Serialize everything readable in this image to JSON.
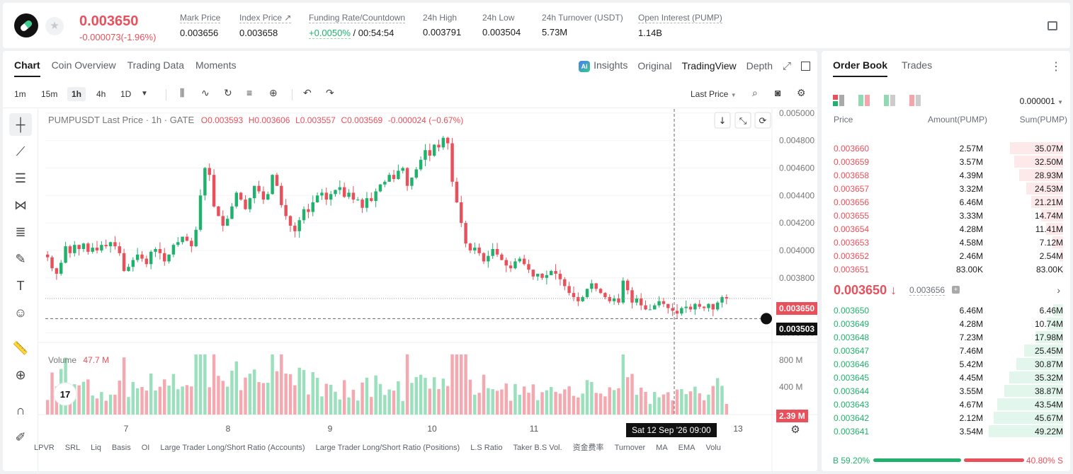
{
  "header": {
    "last_price": "0.003650",
    "change": "-0.000073(-1.96%)",
    "stats": [
      {
        "label": "Mark Price",
        "value": "0.003656"
      },
      {
        "label": "Index Price ↗",
        "value": "0.003658"
      },
      {
        "label": "Funding Rate/Countdown",
        "value_green": "+0.0050%",
        "value": " / 00:54:54"
      },
      {
        "label": "24h High",
        "value": "0.003791"
      },
      {
        "label": "24h Low",
        "value": "0.003504"
      },
      {
        "label": "24h Turnover (USDT)",
        "value": "5.73M"
      },
      {
        "label": "Open Interest (PUMP)",
        "value": "1.14B"
      }
    ]
  },
  "chart_panel": {
    "tabs": [
      "Chart",
      "Coin Overview",
      "Trading Data",
      "Moments"
    ],
    "view_tabs": [
      "Insights",
      "Original",
      "TradingView",
      "Depth"
    ],
    "intervals": [
      "1m",
      "15m",
      "1h",
      "4h",
      "1D"
    ],
    "price_type": "Last Price",
    "legend": {
      "symbol": "PUMPUSDT Last Price · 1h · GATE",
      "o": "O0.003593",
      "h": "H0.003606",
      "l": "L0.003557",
      "c": "C0.003569",
      "chg": "-0.000024 (−0.67%)"
    },
    "volume_label": "Volume",
    "volume_value": "47.7 M",
    "last_price_tag": "0.003650",
    "cross_price_tag": "0.003503",
    "vol_tag": "2.39 M",
    "time_tag": "Sat 12 Sep '26   09:00",
    "bottom_indicators": [
      "LPVR",
      "SRL",
      "Liq",
      "Basis",
      "OI",
      "Large Trader Long/Short Ratio (Accounts)",
      "Large Trader Long/Short Ratio (Positions)",
      "L.S Ratio",
      "Taker B.S Vol.",
      "资金费率",
      "Turnover",
      "MA",
      "EMA",
      "Volu"
    ]
  },
  "chart_data": {
    "type": "candlestick",
    "y_ticks": [
      "0.005000",
      "0.004800",
      "0.004600",
      "0.004400",
      "0.004200",
      "0.004000",
      "0.003800",
      "0.003400"
    ],
    "x_ticks": [
      "7",
      "8",
      "9",
      "10",
      "11",
      "13"
    ],
    "volume_ticks": [
      "800 M",
      "400 M"
    ],
    "ylim": [
      0.00333,
      0.00503
    ],
    "closes": [
      0.00395,
      0.00387,
      0.00383,
      0.00391,
      0.00403,
      0.00398,
      0.00404,
      0.00401,
      0.00405,
      0.00399,
      0.00402,
      0.004,
      0.00404,
      0.00403,
      0.00406,
      0.00403,
      0.00398,
      0.00385,
      0.00388,
      0.00393,
      0.00397,
      0.00394,
      0.0039,
      0.00399,
      0.00401,
      0.00398,
      0.00392,
      0.00397,
      0.00404,
      0.00406,
      0.0041,
      0.00407,
      0.00403,
      0.00415,
      0.0044,
      0.0046,
      0.00455,
      0.00432,
      0.00425,
      0.00418,
      0.00423,
      0.00432,
      0.00442,
      0.00437,
      0.0043,
      0.00438,
      0.00447,
      0.00443,
      0.00437,
      0.00441,
      0.00455,
      0.00447,
      0.00433,
      0.00425,
      0.00418,
      0.00414,
      0.00422,
      0.0043,
      0.00428,
      0.00435,
      0.0044,
      0.00442,
      0.00437,
      0.00441,
      0.00444,
      0.00446,
      0.00439,
      0.00442,
      0.00437,
      0.00437,
      0.00431,
      0.00438,
      0.00436,
      0.00443,
      0.00448,
      0.0045,
      0.00455,
      0.00452,
      0.00458,
      0.0046,
      0.00447,
      0.00453,
      0.00459,
      0.00466,
      0.00473,
      0.00469,
      0.00477,
      0.00475,
      0.00482,
      0.00478,
      0.0045,
      0.00435,
      0.0042,
      0.00405,
      0.004,
      0.00402,
      0.00398,
      0.00392,
      0.00396,
      0.00401,
      0.00397,
      0.00393,
      0.00389,
      0.00387,
      0.00392,
      0.00394,
      0.0039,
      0.00386,
      0.00381,
      0.00383,
      0.0038,
      0.00382,
      0.00385,
      0.00383,
      0.00379,
      0.00374,
      0.00369,
      0.00366,
      0.00363,
      0.00366,
      0.00372,
      0.00376,
      0.00372,
      0.00369,
      0.00366,
      0.00363,
      0.00365,
      0.00362,
      0.00378,
      0.00371,
      0.00362,
      0.00365,
      0.0036,
      0.00357,
      0.00357,
      0.0036,
      0.00363,
      0.00361,
      0.00358,
      0.00356,
      0.00354,
      0.00358,
      0.00359,
      0.00357,
      0.00361,
      0.00359,
      0.00358,
      0.00361,
      0.00357,
      0.00362,
      0.00366,
      0.00365
    ]
  },
  "order_book": {
    "tabs": [
      "Order Book",
      "Trades"
    ],
    "precision": "0.000001",
    "headers": {
      "price": "Price",
      "amount": "Amount(PUMP)",
      "sum": "Sum(PUMP)"
    },
    "asks": [
      {
        "price": "0.003660",
        "amount": "2.57M",
        "sum": "35.07M",
        "depth": 0.71
      },
      {
        "price": "0.003659",
        "amount": "3.57M",
        "sum": "32.50M",
        "depth": 0.66
      },
      {
        "price": "0.003658",
        "amount": "4.39M",
        "sum": "28.93M",
        "depth": 0.59
      },
      {
        "price": "0.003657",
        "amount": "3.32M",
        "sum": "24.53M",
        "depth": 0.5
      },
      {
        "price": "0.003656",
        "amount": "6.46M",
        "sum": "21.21M",
        "depth": 0.43
      },
      {
        "price": "0.003655",
        "amount": "3.33M",
        "sum": "14.74M",
        "depth": 0.3
      },
      {
        "price": "0.003654",
        "amount": "4.28M",
        "sum": "11.41M",
        "depth": 0.23
      },
      {
        "price": "0.003653",
        "amount": "4.58M",
        "sum": "7.12M",
        "depth": 0.14
      },
      {
        "price": "0.003652",
        "amount": "2.46M",
        "sum": "2.54M",
        "depth": 0.05
      },
      {
        "price": "0.003651",
        "amount": "83.00K",
        "sum": "83.00K",
        "depth": 0.01
      }
    ],
    "mid_price": "0.003650 ↓",
    "mid_mark": "0.003656",
    "bids": [
      {
        "price": "0.003650",
        "amount": "6.46M",
        "sum": "6.46M",
        "depth": 0.13
      },
      {
        "price": "0.003649",
        "amount": "4.28M",
        "sum": "10.74M",
        "depth": 0.22
      },
      {
        "price": "0.003648",
        "amount": "7.23M",
        "sum": "17.98M",
        "depth": 0.37
      },
      {
        "price": "0.003647",
        "amount": "7.46M",
        "sum": "25.45M",
        "depth": 0.52
      },
      {
        "price": "0.003646",
        "amount": "5.42M",
        "sum": "30.87M",
        "depth": 0.63
      },
      {
        "price": "0.003645",
        "amount": "4.45M",
        "sum": "35.32M",
        "depth": 0.72
      },
      {
        "price": "0.003644",
        "amount": "3.55M",
        "sum": "38.87M",
        "depth": 0.79
      },
      {
        "price": "0.003643",
        "amount": "4.67M",
        "sum": "43.54M",
        "depth": 0.89
      },
      {
        "price": "0.003642",
        "amount": "2.12M",
        "sum": "45.67M",
        "depth": 0.93
      },
      {
        "price": "0.003641",
        "amount": "3.54M",
        "sum": "49.22M",
        "depth": 1.0
      }
    ],
    "buy_ratio": "B 59.20%",
    "sell_ratio": "40.80% S"
  },
  "colors": {
    "up": "#20b26c",
    "down": "#e8505b"
  }
}
